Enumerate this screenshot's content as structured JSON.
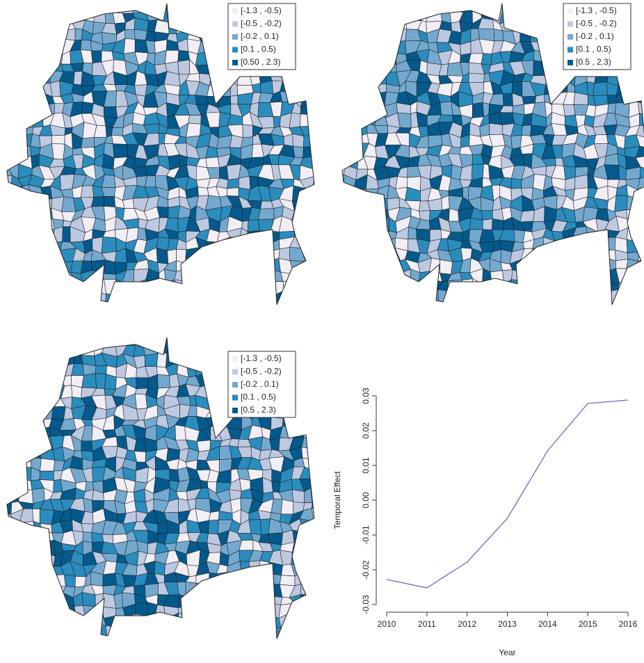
{
  "chart_data": [
    {
      "type": "choropleth",
      "legend": [
        {
          "label": "[-1.3 , -0.5)",
          "color": "#f1eef6"
        },
        {
          "label": "[-0.5 , -0.2)",
          "color": "#bdc9e1"
        },
        {
          "label": "[-0.2 , 0.1)",
          "color": "#74a9cf"
        },
        {
          "label": "[0.1 , 0.5)",
          "color": "#2b8cbe"
        },
        {
          "label": "[0.50 , 2.3)",
          "color": "#045a8d"
        }
      ]
    },
    {
      "type": "choropleth",
      "legend": [
        {
          "label": "[-1.3 , -0.5)",
          "color": "#f1eef6"
        },
        {
          "label": "[-0.5 , -0.2)",
          "color": "#bdc9e1"
        },
        {
          "label": "[-0.2 , 0.1)",
          "color": "#74a9cf"
        },
        {
          "label": "[0.1 , 0.5)",
          "color": "#2b8cbe"
        },
        {
          "label": "[0.5 , 2.3)",
          "color": "#045a8d"
        }
      ]
    },
    {
      "type": "choropleth",
      "legend": [
        {
          "label": "[-1.3 , -0.5)",
          "color": "#f1eef6"
        },
        {
          "label": "[-0.5 , -0.2)",
          "color": "#bdc9e1"
        },
        {
          "label": "[-0.2 , 0.1)",
          "color": "#74a9cf"
        },
        {
          "label": "[0.1 , 0.5)",
          "color": "#2b8cbe"
        },
        {
          "label": "[0.5 , 2.3)",
          "color": "#045a8d"
        }
      ]
    },
    {
      "type": "line",
      "xlabel": "Year",
      "ylabel": "Temporal Effect",
      "x": [
        2010,
        2011,
        2012,
        2013,
        2014,
        2015,
        2016
      ],
      "values": [
        -0.0228,
        -0.0252,
        -0.0178,
        -0.0052,
        0.0142,
        0.0278,
        0.0288
      ],
      "color": "#6a6acd",
      "xlim": [
        2010,
        2016
      ],
      "xticks": [
        2010,
        2011,
        2012,
        2013,
        2014,
        2015,
        2016
      ],
      "ylim": [
        -0.03,
        0.03
      ],
      "yticks": [
        -0.03,
        -0.02,
        -0.01,
        {
          "value": 0,
          "label": "0.00"
        },
        0.01,
        0.02,
        0.03
      ]
    }
  ]
}
